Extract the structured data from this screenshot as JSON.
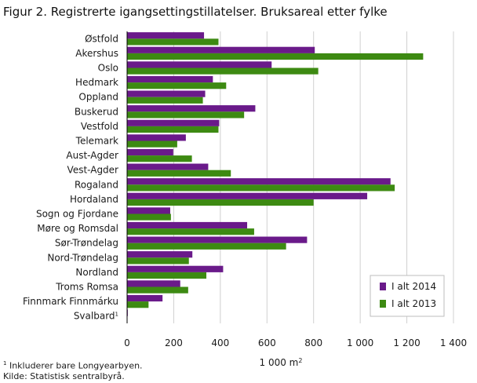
{
  "title": "Figur 2. Registrerte igangsettingstillatelser. Bruksareal etter fylke",
  "footnote_mark": "1",
  "footnote_text": " Inkluderer bare Longyearbyen.",
  "source": "Kilde: Statistisk sentralbyrå.",
  "chart_data": {
    "type": "bar",
    "orientation": "horizontal",
    "categories": [
      "Østfold",
      "Akershus",
      "Oslo",
      "Hedmark",
      "Oppland",
      "Buskerud",
      "Vestfold",
      "Telemark",
      "Aust-Agder",
      "Vest-Agder",
      "Rogaland",
      "Hordaland",
      "Sogn og Fjordane",
      "Møre og Romsdal",
      "Sør-Trøndelag",
      "Nord-Trøndelag",
      "Nordland",
      "Troms Romsa",
      "Finnmark Finnmárku",
      "Svalbard"
    ],
    "category_superscripts": {
      "Svalbard": "1"
    },
    "series": [
      {
        "name": "I alt 2014",
        "color": "#6a1a8a",
        "values": [
          330,
          805,
          620,
          368,
          335,
          550,
          395,
          252,
          198,
          348,
          1130,
          1030,
          185,
          515,
          772,
          280,
          412,
          228,
          152,
          3
        ]
      },
      {
        "name": "I alt 2013",
        "color": "#3d8a12",
        "values": [
          392,
          1270,
          820,
          425,
          325,
          502,
          392,
          215,
          278,
          445,
          1148,
          800,
          188,
          545,
          682,
          265,
          340,
          262,
          92,
          0
        ]
      }
    ],
    "xlim": [
      0,
      1400
    ],
    "xticks": [
      0,
      200,
      400,
      600,
      800,
      1000,
      1200,
      1400
    ],
    "xtick_labels": [
      "0",
      "200",
      "400",
      "600",
      "800",
      "1 000",
      "1 200",
      "1 400"
    ],
    "xlabel": "1 000 m²",
    "ylabel": "",
    "grid": "vertical",
    "legend_position": "bottom-right"
  }
}
